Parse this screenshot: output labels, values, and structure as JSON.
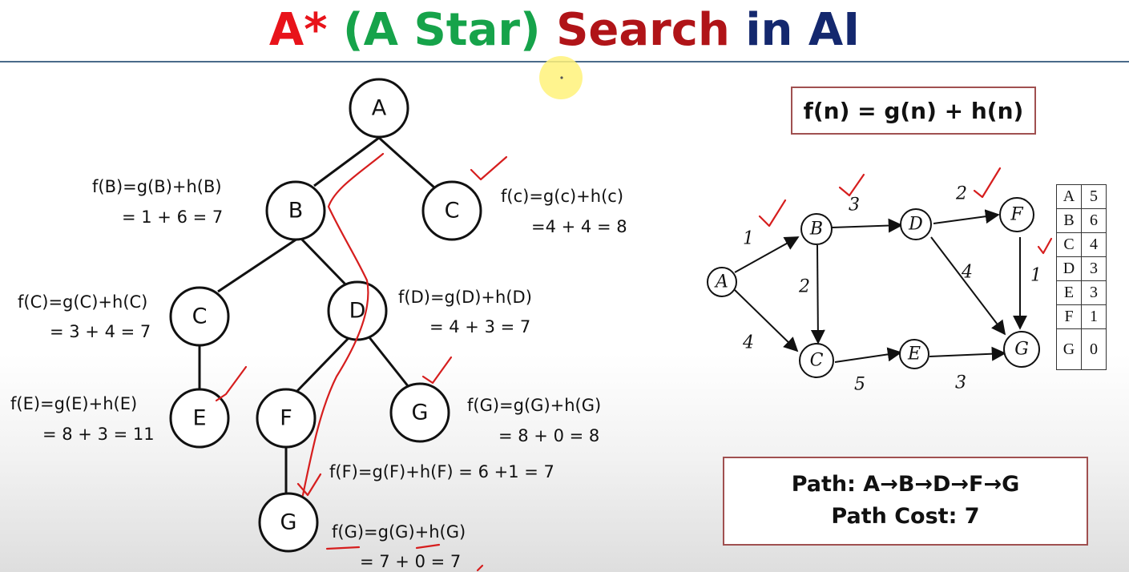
{
  "title": {
    "part1": "A*",
    "part2": "(A Star)",
    "part3": "Search",
    "part4": "in AI",
    "colors": {
      "part1": "#e8131a",
      "part2": "#16a34a",
      "part3": "#b01418",
      "part4": "#14286e"
    }
  },
  "formula": "f(n) = g(n) + h(n)",
  "tree": {
    "nodes": [
      "A",
      "B",
      "C",
      "C",
      "D",
      "E",
      "F",
      "G",
      "G"
    ],
    "annotations": {
      "B": [
        "f(B)=g(B)+h(B)",
        "= 1 + 6 = 7"
      ],
      "C_top": [
        "f(c)=g(c)+h(c)",
        "=4 + 4 = 8"
      ],
      "C_left": [
        "f(C)=g(C)+h(C)",
        "= 3 + 4 = 7"
      ],
      "D": [
        "f(D)=g(D)+h(D)",
        "= 4 + 3 = 7"
      ],
      "E": [
        "f(E)=g(E)+h(E)",
        "= 8 + 3 = 11"
      ],
      "G_right": [
        "f(G)=g(G)+h(G)",
        "= 8 + 0 = 8"
      ],
      "F": [
        "f(F)=g(F)+h(F) = 6 +1 = 7"
      ],
      "G_bottom": [
        "f(G)=g(G)+h(G)",
        "= 7 + 0 = 7"
      ]
    }
  },
  "graph": {
    "nodes": [
      "A",
      "B",
      "C",
      "D",
      "E",
      "F",
      "G"
    ],
    "edge_weights": [
      "1",
      "4",
      "3",
      "2",
      "2",
      "4",
      "5",
      "3",
      "1"
    ]
  },
  "heuristic_table": [
    [
      "A",
      "5"
    ],
    [
      "B",
      "6"
    ],
    [
      "C",
      "4"
    ],
    [
      "D",
      "3"
    ],
    [
      "E",
      "3"
    ],
    [
      "F",
      "1"
    ],
    [
      "G",
      "0"
    ]
  ],
  "result": {
    "path": "Path: A→B→D→F→G",
    "cost": "Path Cost: 7"
  }
}
